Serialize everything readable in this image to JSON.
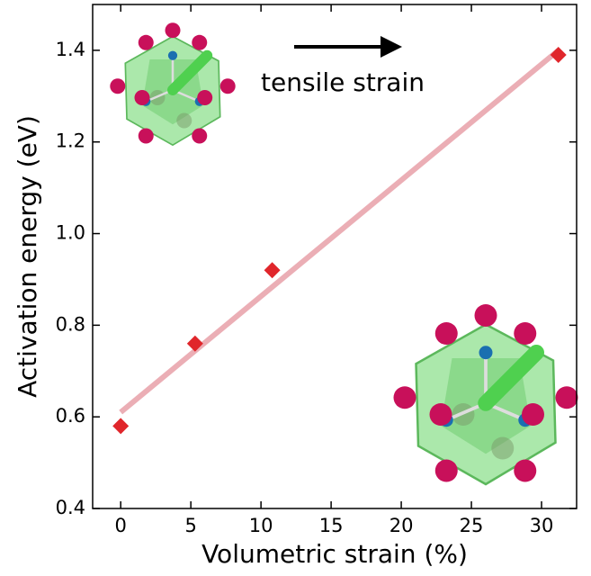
{
  "chart_data": {
    "type": "scatter",
    "xlabel": "Volumetric strain (%)",
    "ylabel": "Activation energy (eV)",
    "annotation": "tensile strain",
    "series": [
      {
        "x": [
          0,
          5.3,
          10.8,
          31.2
        ],
        "values": [
          0.58,
          0.76,
          0.92,
          1.39
        ],
        "color": "#e0262b",
        "marker": "diamond"
      },
      {
        "x": [
          0,
          31.2
        ],
        "values": [
          0.61,
          1.4
        ],
        "color": "#e8a0a8",
        "marker": "line"
      }
    ],
    "xlim": [
      -2,
      32.5
    ],
    "xticks": [
      0,
      5,
      10,
      15,
      20,
      25,
      30
    ],
    "ylim": [
      0.4,
      1.5
    ],
    "yticks": [
      0.4,
      0.6,
      0.8,
      {
        "value": 1,
        "label": "1.0"
      },
      1.2,
      1.4
    ],
    "grid": false
  }
}
